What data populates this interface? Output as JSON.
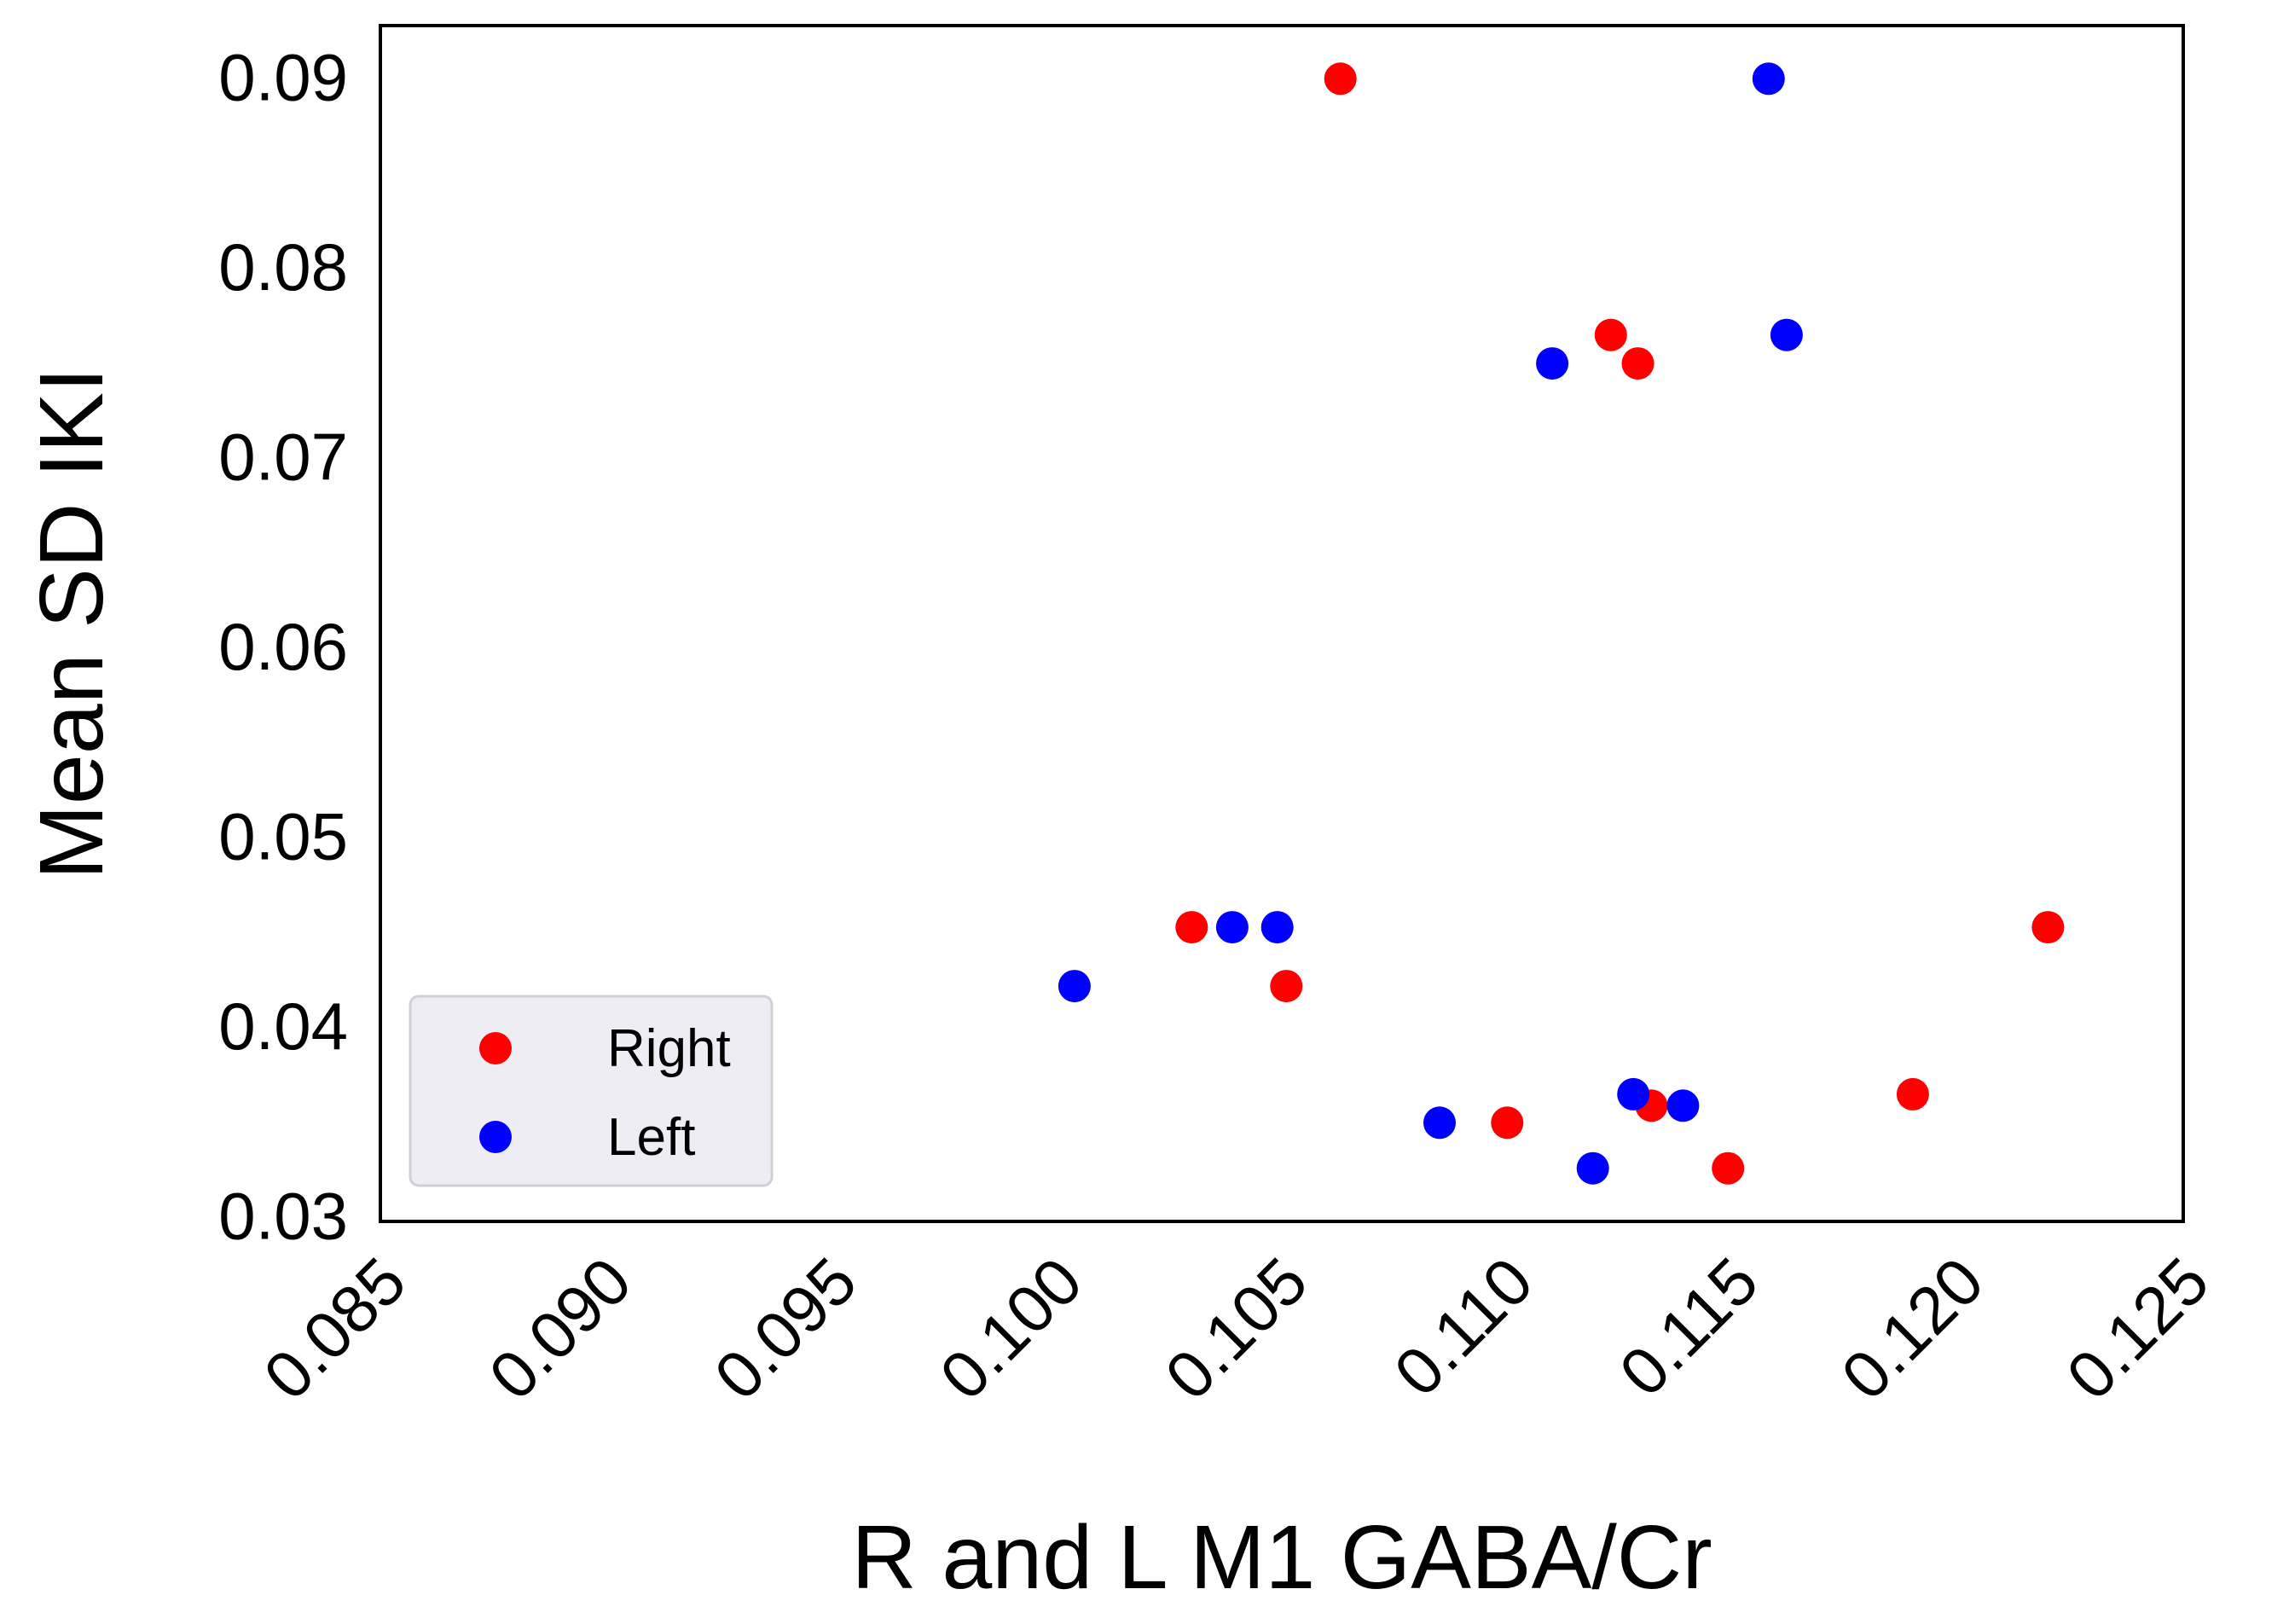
{
  "chart_data": {
    "type": "scatter",
    "title": "",
    "xlabel": "R and L M1 GABA/Cr",
    "ylabel": "Mean SD IKI",
    "xlim": [
      0.085,
      0.125
    ],
    "ylim": [
      0.03,
      0.093
    ],
    "x_ticks": [
      "0.085",
      "0.090",
      "0.095",
      "0.100",
      "0.105",
      "0.110",
      "0.115",
      "0.120",
      "0.125"
    ],
    "y_ticks": [
      "0.03",
      "0.04",
      "0.05",
      "0.06",
      "0.07",
      "0.08",
      "0.09"
    ],
    "grid": false,
    "legend_position": "lower-left",
    "series": [
      {
        "name": "Right",
        "color": "#ff0000",
        "points": [
          {
            "x": 0.1063,
            "y": 0.0902
          },
          {
            "x": 0.1123,
            "y": 0.0767
          },
          {
            "x": 0.1129,
            "y": 0.0752
          },
          {
            "x": 0.103,
            "y": 0.0455
          },
          {
            "x": 0.1051,
            "y": 0.0424
          },
          {
            "x": 0.11,
            "y": 0.0352
          },
          {
            "x": 0.1132,
            "y": 0.0361
          },
          {
            "x": 0.1149,
            "y": 0.0328
          },
          {
            "x": 0.119,
            "y": 0.0367
          },
          {
            "x": 0.122,
            "y": 0.0455
          }
        ]
      },
      {
        "name": "Left",
        "color": "#0000ff",
        "points": [
          {
            "x": 0.1158,
            "y": 0.0902
          },
          {
            "x": 0.1162,
            "y": 0.0767
          },
          {
            "x": 0.111,
            "y": 0.0752
          },
          {
            "x": 0.1039,
            "y": 0.0455
          },
          {
            "x": 0.1049,
            "y": 0.0455
          },
          {
            "x": 0.1004,
            "y": 0.0424
          },
          {
            "x": 0.1085,
            "y": 0.0352
          },
          {
            "x": 0.1119,
            "y": 0.0328
          },
          {
            "x": 0.1128,
            "y": 0.0367
          },
          {
            "x": 0.1139,
            "y": 0.0361
          }
        ]
      }
    ]
  }
}
